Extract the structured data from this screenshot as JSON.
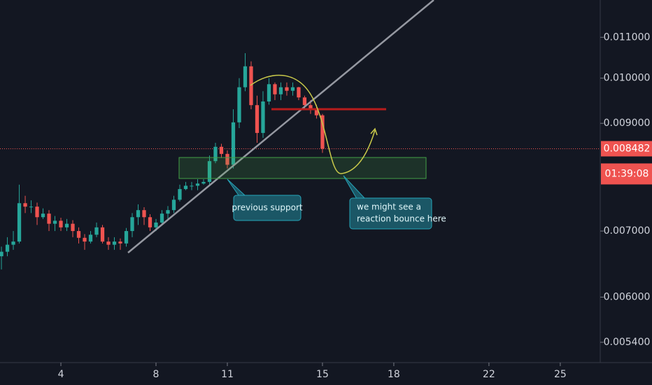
{
  "chart_data": {
    "type": "candlestick",
    "x": [
      1.5,
      1.75,
      2,
      2.25,
      2.5,
      2.75,
      3,
      3.25,
      3.5,
      3.75,
      4,
      4.25,
      4.5,
      4.75,
      5,
      5.25,
      5.5,
      5.75,
      6,
      6.25,
      6.5,
      6.75,
      7,
      7.25,
      7.5,
      7.75,
      8,
      8.25,
      8.5,
      8.75,
      9,
      9.25,
      9.5,
      9.75,
      10,
      10.25,
      10.5,
      10.75,
      11,
      11.25,
      11.5,
      11.75,
      12,
      12.25,
      12.5,
      12.75,
      13,
      13.25,
      13.5,
      13.75,
      14,
      14.25,
      14.5,
      14.75,
      15
    ],
    "open": [
      0.0066,
      0.00667,
      0.00678,
      0.00683,
      0.00747,
      0.00741,
      0.00741,
      0.00723,
      0.00729,
      0.00712,
      0.00717,
      0.00706,
      0.00712,
      0.007,
      0.00689,
      0.00683,
      0.00694,
      0.00706,
      0.00683,
      0.00678,
      0.00683,
      0.0068,
      0.007,
      0.00723,
      0.00735,
      0.00723,
      0.00706,
      0.00714,
      0.00729,
      0.00735,
      0.00753,
      0.00772,
      0.00778,
      0.00778,
      0.00782,
      0.00785,
      0.00824,
      0.00852,
      0.00838,
      0.00817,
      0.00902,
      0.00979,
      0.01028,
      0.00939,
      0.0088,
      0.00947,
      0.00986,
      0.00963,
      0.00979,
      0.00971,
      0.00979,
      0.00956,
      0.00939,
      0.00932,
      0.00917
    ],
    "high": [
      0.00675,
      0.0069,
      0.007,
      0.0078,
      0.0076,
      0.00752,
      0.00748,
      0.00738,
      0.00735,
      0.00725,
      0.00722,
      0.0072,
      0.00718,
      0.00706,
      0.00695,
      0.007,
      0.00714,
      0.0071,
      0.0069,
      0.0069,
      0.00688,
      0.00705,
      0.0073,
      0.00745,
      0.0074,
      0.00728,
      0.0072,
      0.00735,
      0.00742,
      0.0076,
      0.0078,
      0.00785,
      0.00785,
      0.0079,
      0.0079,
      0.00835,
      0.0086,
      0.00858,
      0.00845,
      0.0093,
      0.01,
      0.0106,
      0.0104,
      0.0096,
      0.0097,
      0.01,
      0.0099,
      0.0099,
      0.0099,
      0.0099,
      0.0098,
      0.0096,
      0.0095,
      0.0094,
      0.0092
    ],
    "low": [
      0.0064,
      0.0066,
      0.0067,
      0.0068,
      0.0073,
      0.0073,
      0.0071,
      0.0072,
      0.007,
      0.007,
      0.007,
      0.007,
      0.0069,
      0.0068,
      0.0067,
      0.0068,
      0.0069,
      0.0068,
      0.0067,
      0.0067,
      0.0067,
      0.00675,
      0.0069,
      0.0071,
      0.0071,
      0.007,
      0.007,
      0.0071,
      0.0072,
      0.0073,
      0.0075,
      0.0077,
      0.0077,
      0.0077,
      0.0078,
      0.0078,
      0.0082,
      0.0083,
      0.0081,
      0.0081,
      0.0089,
      0.0097,
      0.0093,
      0.0086,
      0.0087,
      0.0094,
      0.0095,
      0.0095,
      0.0096,
      0.0096,
      0.0095,
      0.0093,
      0.0092,
      0.0091,
      0.0084
    ],
    "close": [
      0.00667,
      0.00678,
      0.00683,
      0.00747,
      0.00741,
      0.00741,
      0.00723,
      0.00729,
      0.00712,
      0.00717,
      0.00706,
      0.00712,
      0.007,
      0.00689,
      0.00683,
      0.00694,
      0.00706,
      0.00683,
      0.00678,
      0.00683,
      0.0068,
      0.007,
      0.00723,
      0.00735,
      0.00723,
      0.00706,
      0.00714,
      0.00729,
      0.00735,
      0.00753,
      0.00772,
      0.00778,
      0.00778,
      0.00782,
      0.00785,
      0.00824,
      0.00852,
      0.00838,
      0.00817,
      0.00902,
      0.00979,
      0.01028,
      0.00939,
      0.0088,
      0.00947,
      0.00986,
      0.00963,
      0.00979,
      0.00971,
      0.00979,
      0.00956,
      0.00939,
      0.00932,
      0.00917,
      0.008482
    ],
    "up_color": "#26a69a",
    "down_color": "#ef5350",
    "xlim": [
      1.44,
      26.68
    ],
    "xticks": [
      4,
      8,
      11,
      15,
      18,
      22,
      25
    ],
    "ylim": [
      0.00515,
      0.012
    ],
    "log_scale": true,
    "yticks": [
      {
        "value": 0.0054,
        "label": "0.005400"
      },
      {
        "value": 0.006,
        "label": "0.006000"
      },
      {
        "value": 0.007,
        "label": "0.007000"
      },
      {
        "value": 0.009,
        "label": "0.009000"
      },
      {
        "value": 0.01,
        "label": "0.010000"
      },
      {
        "value": 0.011,
        "label": "0.011000"
      }
    ],
    "last_price": 0.008482,
    "countdown": "01:39:08",
    "grid": false,
    "annotations": [
      [
        "previous support"
      ],
      [
        "we might see a",
        "reaction bounce here"
      ]
    ]
  }
}
